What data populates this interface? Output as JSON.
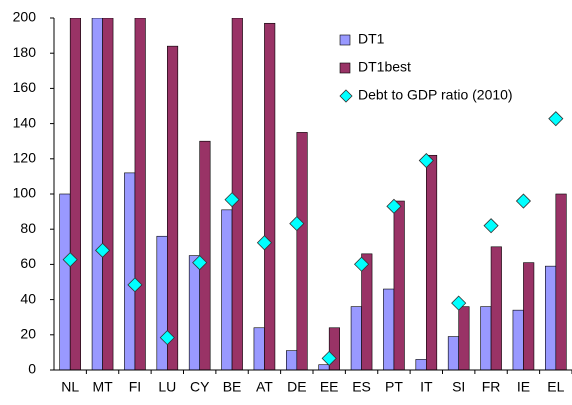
{
  "chart_data": {
    "type": "bar",
    "categories": [
      "NL",
      "MT",
      "FI",
      "LU",
      "CY",
      "BE",
      "AT",
      "DE",
      "EE",
      "ES",
      "PT",
      "IT",
      "SI",
      "FR",
      "IE",
      "EL"
    ],
    "series": [
      {
        "name": "DT1",
        "color": "#9999ff",
        "values": [
          100,
          200,
          112,
          76,
          65,
          91,
          24,
          11,
          3,
          36,
          46,
          6,
          19,
          36,
          34,
          59
        ]
      },
      {
        "name": "DT1best",
        "color": "#993366",
        "values": [
          200,
          200,
          200,
          184,
          130,
          200,
          197,
          135,
          24,
          66,
          96,
          122,
          36,
          70,
          61,
          100
        ]
      },
      {
        "name": "Debt to GDP ratio (2010)",
        "color": "#00ffff",
        "marker": "diamond",
        "values": [
          62.7,
          68,
          48.4,
          18.4,
          61,
          96.8,
          72.3,
          83.2,
          6.6,
          60.1,
          93,
          119,
          38,
          82,
          96,
          142.8
        ]
      }
    ],
    "ylim": [
      0,
      200
    ],
    "yticks": [
      0,
      20,
      40,
      60,
      80,
      100,
      120,
      140,
      160,
      180,
      200
    ],
    "grid": false,
    "legend": "top-right"
  }
}
